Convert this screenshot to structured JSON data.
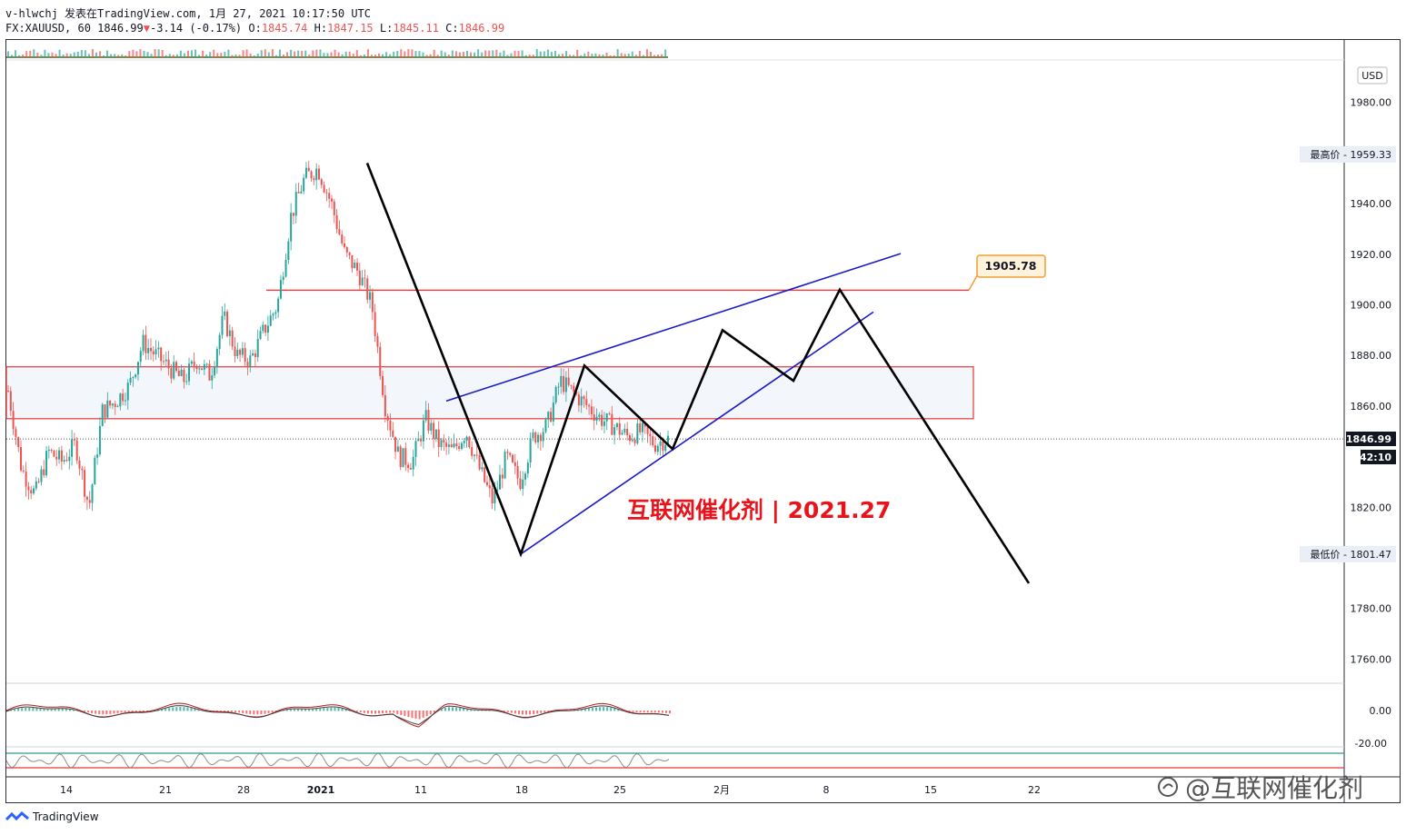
{
  "header": {
    "line1": "v-hlwchj 发表在TradingView.com, 1月 27, 2021 10:17:50 UTC",
    "symbol": "FX:XAUUSD, 60",
    "last": "1846.99",
    "arrow": "▼",
    "change": "-3.14 (-0.17%)",
    "o_label": "O:",
    "o_value": "1845.74",
    "h_label": "H:",
    "h_value": "1847.15",
    "l_label": "L:",
    "l_value": "1845.11",
    "c_label": "C:",
    "c_value": "1846.99"
  },
  "price_axis": {
    "currency": "USD",
    "ticks": [
      "1980.00",
      "1940.00",
      "1920.00",
      "1900.00",
      "1880.00",
      "1860.00",
      "1820.00",
      "1780.00",
      "1760.00"
    ],
    "high_label": "最高价 - 1959.33",
    "low_label": "最低价 - 1801.47",
    "last_price": "1846.99",
    "countdown": "42:10",
    "osc_ticks": [
      "0.00",
      "-20.00"
    ]
  },
  "time_axis": {
    "ticks": [
      "14",
      "21",
      "28",
      "2021",
      "11",
      "18",
      "25",
      "2月",
      "8",
      "15",
      "22"
    ]
  },
  "annotations": {
    "target_label": "1905.78",
    "title_text": "互联网催化剂 | 2021.27"
  },
  "footer": {
    "brand": "TradingView"
  },
  "watermark": {
    "text": "@互联网催化剂"
  },
  "colors": {
    "up": "#26a69a",
    "down": "#ef5350",
    "zone": "#e53935",
    "trend": "#1a1acc",
    "path": "#000000",
    "zone_fill": "#f3f6fb"
  },
  "chart_data": {
    "type": "line",
    "title": "",
    "xlabel": "",
    "ylabel": "",
    "ylim": [
      1750,
      1990
    ],
    "y_ticks": [
      1760,
      1780,
      1820,
      1860,
      1880,
      1900,
      1920,
      1940,
      1980
    ],
    "x_tick_labels": [
      "14",
      "21",
      "28",
      "2021",
      "11",
      "18",
      "25",
      "2月",
      "8",
      "15",
      "22"
    ],
    "series": [
      {
        "values": [
          1866,
          1835,
          1825,
          1842,
          1838,
          1845,
          1820,
          1858,
          1862,
          1868,
          1885,
          1880,
          1875,
          1870,
          1878,
          1872,
          1895,
          1880,
          1878,
          1890,
          1900,
          1935,
          1950,
          1954,
          1940,
          1920,
          1913,
          1900,
          1860,
          1840,
          1838,
          1855,
          1845,
          1842,
          1850,
          1835,
          1822,
          1840,
          1830,
          1848,
          1852,
          1870,
          1865,
          1860,
          1855,
          1852,
          1848,
          1850,
          1845,
          1847
        ]
      }
    ],
    "horizontal_levels": [
      1905.78,
      1875.5,
      1855
    ],
    "zone": [
      1855,
      1875.5
    ],
    "high": 1959.33,
    "low": 1801.47,
    "last": 1846.99,
    "projected_path": [
      1956,
      1801.5,
      1876,
      1843,
      1890,
      1870,
      1906,
      1790
    ],
    "trend_upper": [
      1862,
      1914.5
    ],
    "trend_lower": [
      1801.5,
      1890
    ]
  }
}
